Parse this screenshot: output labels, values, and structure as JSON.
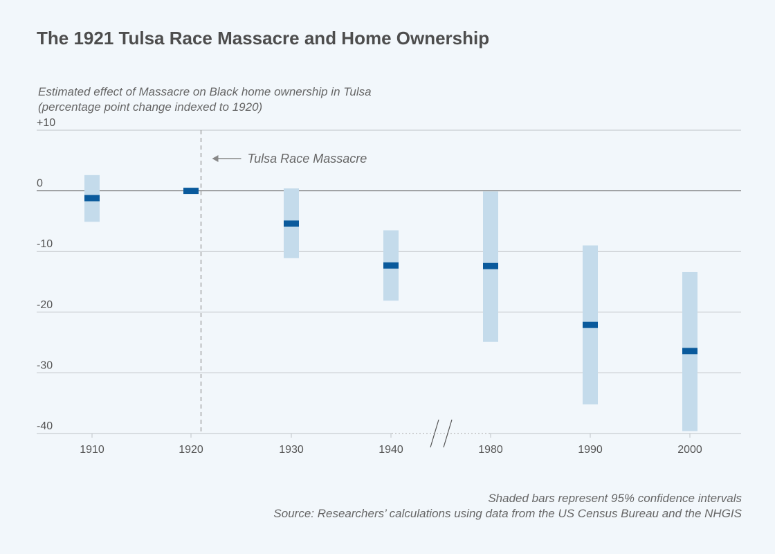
{
  "title": "The 1921 Tulsa Race Massacre and Home Ownership",
  "notes": {
    "ci_note": "Shaded bars represent 95% confidence intervals",
    "source": "Source: Researchers’ calculations using data from the US Census Bureau and the NHGIS"
  },
  "chart_data": {
    "type": "scatter",
    "title": "The 1921 Tulsa Race Massacre and Home Ownership",
    "ylabel_lines": [
      "Estimated effect of Massacre on Black home ownership in Tulsa",
      "(percentage point change indexed to 1920)"
    ],
    "xlabel": "",
    "ylim": [
      -40,
      10
    ],
    "yticks": [
      10,
      0,
      -10,
      -20,
      -30,
      -40
    ],
    "ytick_labels": [
      "+10",
      "0",
      "-10",
      "-20",
      "-30",
      "-40"
    ],
    "axis_break": {
      "between": [
        "1940",
        "1980"
      ]
    },
    "categories": [
      "1910",
      "1920",
      "1930",
      "1940",
      "1980",
      "1990",
      "2000"
    ],
    "values": [
      -1.2,
      0,
      -5.4,
      -12.3,
      -12.4,
      -22.1,
      -26.4
    ],
    "ci_low": [
      -5.1,
      0,
      -11.1,
      -18.1,
      -24.9,
      -35.2,
      -39.6
    ],
    "ci_high": [
      2.6,
      0,
      0.4,
      -6.5,
      -0.1,
      -9.0,
      -13.4
    ],
    "annotation": {
      "text": "Tulsa Race Massacre",
      "year": 1921
    },
    "grid": true,
    "colors": {
      "point": "#0a5a9c",
      "ci": "#c4dbeb",
      "grid": "#bfc3c7",
      "zero": "#555555",
      "annotation": "#888888"
    }
  }
}
